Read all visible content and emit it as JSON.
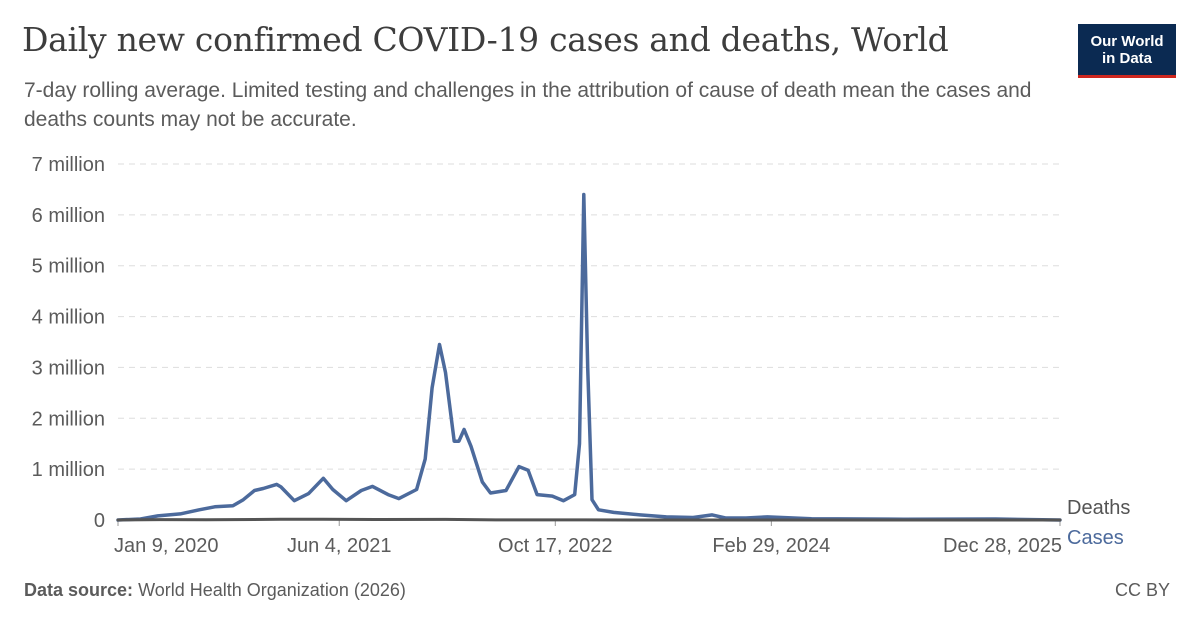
{
  "header": {
    "title": "Daily new confirmed COVID-19 cases and deaths, World",
    "subtitle": "7-day rolling average. Limited testing and challenges in the attribution of cause of death mean the cases and deaths counts may not be accurate."
  },
  "logo": {
    "line1": "Our World",
    "line2": "in Data"
  },
  "footer": {
    "source_label": "Data source:",
    "source_text": "World Health Organization (2026)",
    "license": "CC BY"
  },
  "colors": {
    "cases": "#4c6a9c",
    "deaths": "#545454",
    "grid": "#dddddd",
    "text": "#5b5b5b"
  },
  "chart_data": {
    "type": "line",
    "title": "Daily new confirmed COVID-19 cases and deaths, World",
    "xlabel": "",
    "ylabel": "",
    "ylim": [
      0,
      7000000
    ],
    "xlim": [
      "2020-01-09",
      "2025-12-28"
    ],
    "y_ticks": [
      {
        "value": 0,
        "label": "0"
      },
      {
        "value": 1000000,
        "label": "1 million"
      },
      {
        "value": 2000000,
        "label": "2 million"
      },
      {
        "value": 3000000,
        "label": "3 million"
      },
      {
        "value": 4000000,
        "label": "4 million"
      },
      {
        "value": 5000000,
        "label": "5 million"
      },
      {
        "value": 6000000,
        "label": "6 million"
      },
      {
        "value": 7000000,
        "label": "7 million"
      }
    ],
    "x_ticks": [
      {
        "date": "2020-01-09",
        "label": "Jan 9, 2020"
      },
      {
        "date": "2021-06-04",
        "label": "Jun 4, 2021"
      },
      {
        "date": "2022-10-17",
        "label": "Oct 17, 2022"
      },
      {
        "date": "2024-02-29",
        "label": "Feb 29, 2024"
      },
      {
        "date": "2025-12-28",
        "label": "Dec 28, 2025"
      }
    ],
    "series": [
      {
        "name": "Deaths",
        "points": [
          [
            "2020-01-09",
            0
          ],
          [
            "2020-04-15",
            7000
          ],
          [
            "2020-08-01",
            5500
          ],
          [
            "2021-01-20",
            14500
          ],
          [
            "2021-04-28",
            13800
          ],
          [
            "2021-08-25",
            10500
          ],
          [
            "2022-02-05",
            11500
          ],
          [
            "2022-06-01",
            1800
          ],
          [
            "2022-12-25",
            2500
          ],
          [
            "2023-06-01",
            700
          ],
          [
            "2024-01-01",
            400
          ],
          [
            "2025-12-28",
            100
          ]
        ]
      },
      {
        "name": "Cases",
        "points": [
          [
            "2020-01-09",
            0
          ],
          [
            "2020-03-01",
            20000
          ],
          [
            "2020-04-10",
            80000
          ],
          [
            "2020-06-01",
            120000
          ],
          [
            "2020-07-15",
            200000
          ],
          [
            "2020-08-20",
            260000
          ],
          [
            "2020-10-01",
            280000
          ],
          [
            "2020-10-25",
            400000
          ],
          [
            "2020-11-20",
            580000
          ],
          [
            "2020-12-10",
            620000
          ],
          [
            "2021-01-10",
            700000
          ],
          [
            "2021-01-20",
            650000
          ],
          [
            "2021-02-20",
            380000
          ],
          [
            "2021-03-25",
            520000
          ],
          [
            "2021-04-28",
            820000
          ],
          [
            "2021-05-20",
            600000
          ],
          [
            "2021-06-20",
            380000
          ],
          [
            "2021-07-25",
            580000
          ],
          [
            "2021-08-20",
            660000
          ],
          [
            "2021-09-25",
            500000
          ],
          [
            "2021-10-20",
            420000
          ],
          [
            "2021-11-30",
            600000
          ],
          [
            "2021-12-20",
            1200000
          ],
          [
            "2022-01-05",
            2600000
          ],
          [
            "2022-01-22",
            3450000
          ],
          [
            "2022-02-05",
            2900000
          ],
          [
            "2022-02-25",
            1550000
          ],
          [
            "2022-03-08",
            1550000
          ],
          [
            "2022-03-20",
            1780000
          ],
          [
            "2022-04-05",
            1450000
          ],
          [
            "2022-05-01",
            750000
          ],
          [
            "2022-05-20",
            530000
          ],
          [
            "2022-06-25",
            580000
          ],
          [
            "2022-07-25",
            1050000
          ],
          [
            "2022-08-15",
            980000
          ],
          [
            "2022-09-05",
            500000
          ],
          [
            "2022-10-10",
            470000
          ],
          [
            "2022-11-05",
            380000
          ],
          [
            "2022-12-01",
            500000
          ],
          [
            "2022-12-12",
            1500000
          ],
          [
            "2022-12-22",
            6400000
          ],
          [
            "2022-12-31",
            3000000
          ],
          [
            "2023-01-10",
            400000
          ],
          [
            "2023-01-25",
            200000
          ],
          [
            "2023-03-01",
            150000
          ],
          [
            "2023-05-01",
            100000
          ],
          [
            "2023-07-01",
            60000
          ],
          [
            "2023-09-01",
            50000
          ],
          [
            "2023-10-15",
            100000
          ],
          [
            "2023-11-15",
            40000
          ],
          [
            "2024-01-01",
            40000
          ],
          [
            "2024-02-20",
            60000
          ],
          [
            "2024-06-01",
            25000
          ],
          [
            "2025-01-01",
            15000
          ],
          [
            "2025-08-01",
            20000
          ],
          [
            "2025-12-28",
            0
          ]
        ]
      }
    ]
  }
}
